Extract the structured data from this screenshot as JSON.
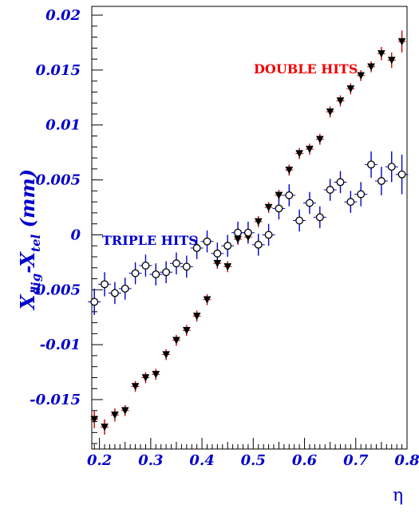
{
  "chart_data": {
    "type": "scatter",
    "xlabel": "η",
    "ylabel_main": "X",
    "ylabel_sub1": "dig",
    "ylabel_dash": "-X",
    "ylabel_sub2": "tel",
    "ylabel_unit": " (mm)",
    "xlim": [
      0.185,
      0.8
    ],
    "ylim": [
      -0.0195,
      0.0208
    ],
    "x_ticks": [
      {
        "value": 0.2,
        "label": "0.2"
      },
      {
        "value": 0.3,
        "label": "0.3"
      },
      {
        "value": 0.4,
        "label": "0.4"
      },
      {
        "value": 0.5,
        "label": "0.5"
      },
      {
        "value": 0.6,
        "label": "0.6"
      },
      {
        "value": 0.7,
        "label": "0.7"
      },
      {
        "value": 0.8,
        "label": "0.8"
      }
    ],
    "y_ticks": [
      {
        "value": -0.015,
        "label": "-0.015"
      },
      {
        "value": -0.01,
        "label": "-0.01"
      },
      {
        "value": -0.005,
        "label": "-0.005"
      },
      {
        "value": 0,
        "label": "0"
      },
      {
        "value": 0.005,
        "label": "0.005"
      },
      {
        "value": 0.01,
        "label": "0.01"
      },
      {
        "value": 0.015,
        "label": "0.015"
      },
      {
        "value": 0.02,
        "label": "0.02"
      }
    ],
    "annotations": [
      {
        "text": "DOUBLE HITS",
        "color": "#ee0000",
        "series": "double"
      },
      {
        "text": "TRIPLE HITS",
        "color": "#0000cc",
        "series": "triple"
      }
    ],
    "series": [
      {
        "key": "double",
        "marker": "filled-triangle-down",
        "marker_color": "#000000",
        "error_color": "#cc0000",
        "points": [
          {
            "x": 0.19,
            "y": -0.0168,
            "err": 0.0008
          },
          {
            "x": 0.21,
            "y": -0.0175,
            "err": 0.0007
          },
          {
            "x": 0.23,
            "y": -0.0164,
            "err": 0.0006
          },
          {
            "x": 0.25,
            "y": -0.016,
            "err": 0.0005
          },
          {
            "x": 0.27,
            "y": -0.0138,
            "err": 0.0005
          },
          {
            "x": 0.29,
            "y": -0.013,
            "err": 0.0005
          },
          {
            "x": 0.31,
            "y": -0.0127,
            "err": 0.0005
          },
          {
            "x": 0.33,
            "y": -0.0109,
            "err": 0.0005
          },
          {
            "x": 0.35,
            "y": -0.0096,
            "err": 0.0005
          },
          {
            "x": 0.37,
            "y": -0.0087,
            "err": 0.0005
          },
          {
            "x": 0.39,
            "y": -0.0074,
            "err": 0.0005
          },
          {
            "x": 0.41,
            "y": -0.0059,
            "err": 0.0005
          },
          {
            "x": 0.43,
            "y": -0.0026,
            "err": 0.0005
          },
          {
            "x": 0.45,
            "y": -0.0029,
            "err": 0.0005
          },
          {
            "x": 0.47,
            "y": -0.0004,
            "err": 0.0005
          },
          {
            "x": 0.49,
            "y": -0.0002,
            "err": 0.0005
          },
          {
            "x": 0.51,
            "y": 0.0012,
            "err": 0.0005
          },
          {
            "x": 0.53,
            "y": 0.0025,
            "err": 0.0005
          },
          {
            "x": 0.55,
            "y": 0.0036,
            "err": 0.0005
          },
          {
            "x": 0.57,
            "y": 0.0059,
            "err": 0.0005
          },
          {
            "x": 0.59,
            "y": 0.0074,
            "err": 0.0005
          },
          {
            "x": 0.61,
            "y": 0.0078,
            "err": 0.0005
          },
          {
            "x": 0.63,
            "y": 0.0087,
            "err": 0.0005
          },
          {
            "x": 0.65,
            "y": 0.0112,
            "err": 0.0005
          },
          {
            "x": 0.67,
            "y": 0.0122,
            "err": 0.0005
          },
          {
            "x": 0.69,
            "y": 0.0133,
            "err": 0.0005
          },
          {
            "x": 0.71,
            "y": 0.0145,
            "err": 0.0005
          },
          {
            "x": 0.73,
            "y": 0.0153,
            "err": 0.0005
          },
          {
            "x": 0.75,
            "y": 0.0165,
            "err": 0.0006
          },
          {
            "x": 0.77,
            "y": 0.0159,
            "err": 0.0007
          },
          {
            "x": 0.79,
            "y": 0.0176,
            "err": 0.001
          }
        ]
      },
      {
        "key": "triple",
        "marker": "open-circle",
        "marker_color": "#000000",
        "error_color": "#0000cc",
        "points": [
          {
            "x": 0.19,
            "y": -0.0061,
            "err": 0.0012
          },
          {
            "x": 0.21,
            "y": -0.0045,
            "err": 0.0011
          },
          {
            "x": 0.23,
            "y": -0.0053,
            "err": 0.001
          },
          {
            "x": 0.25,
            "y": -0.0049,
            "err": 0.001
          },
          {
            "x": 0.27,
            "y": -0.0035,
            "err": 0.001
          },
          {
            "x": 0.29,
            "y": -0.0028,
            "err": 0.001
          },
          {
            "x": 0.31,
            "y": -0.0036,
            "err": 0.001
          },
          {
            "x": 0.33,
            "y": -0.0034,
            "err": 0.001
          },
          {
            "x": 0.35,
            "y": -0.0026,
            "err": 0.001
          },
          {
            "x": 0.37,
            "y": -0.0029,
            "err": 0.001
          },
          {
            "x": 0.39,
            "y": -0.0012,
            "err": 0.001
          },
          {
            "x": 0.41,
            "y": -0.0006,
            "err": 0.001
          },
          {
            "x": 0.43,
            "y": -0.0017,
            "err": 0.001
          },
          {
            "x": 0.45,
            "y": -0.001,
            "err": 0.001
          },
          {
            "x": 0.47,
            "y": 0.0002,
            "err": 0.001
          },
          {
            "x": 0.49,
            "y": 0.0002,
            "err": 0.001
          },
          {
            "x": 0.51,
            "y": -0.0009,
            "err": 0.001
          },
          {
            "x": 0.53,
            "y": 0.0,
            "err": 0.001
          },
          {
            "x": 0.55,
            "y": 0.0024,
            "err": 0.001
          },
          {
            "x": 0.57,
            "y": 0.0036,
            "err": 0.001
          },
          {
            "x": 0.59,
            "y": 0.0013,
            "err": 0.001
          },
          {
            "x": 0.61,
            "y": 0.0029,
            "err": 0.001
          },
          {
            "x": 0.63,
            "y": 0.0016,
            "err": 0.001
          },
          {
            "x": 0.65,
            "y": 0.0041,
            "err": 0.001
          },
          {
            "x": 0.67,
            "y": 0.0048,
            "err": 0.001
          },
          {
            "x": 0.69,
            "y": 0.003,
            "err": 0.001
          },
          {
            "x": 0.71,
            "y": 0.0037,
            "err": 0.0011
          },
          {
            "x": 0.73,
            "y": 0.0064,
            "err": 0.0012
          },
          {
            "x": 0.75,
            "y": 0.0049,
            "err": 0.0013
          },
          {
            "x": 0.77,
            "y": 0.0062,
            "err": 0.0014
          },
          {
            "x": 0.79,
            "y": 0.0055,
            "err": 0.0018
          }
        ]
      }
    ]
  }
}
